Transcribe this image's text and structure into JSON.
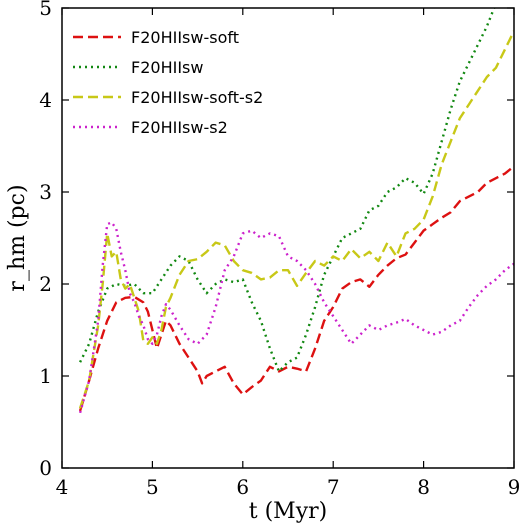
{
  "chart_data": {
    "type": "line",
    "xlabel": "t (Myr)",
    "ylabel": "r_hm (pc)",
    "xlim": [
      4,
      9
    ],
    "ylim": [
      0,
      5
    ],
    "xticks": [
      4,
      5,
      6,
      7,
      8,
      9
    ],
    "yticks": [
      0,
      1,
      2,
      3,
      4,
      5
    ],
    "grid": false,
    "legend_position": "top-left",
    "series": [
      {
        "name": "F20HIIsw-soft",
        "color": "#dd1111",
        "dash": "dashed",
        "points": [
          [
            4.2,
            0.62
          ],
          [
            4.3,
            0.95
          ],
          [
            4.4,
            1.3
          ],
          [
            4.5,
            1.6
          ],
          [
            4.6,
            1.8
          ],
          [
            4.7,
            1.85
          ],
          [
            4.8,
            1.86
          ],
          [
            4.9,
            1.8
          ],
          [
            4.95,
            1.7
          ],
          [
            5.0,
            1.5
          ],
          [
            5.05,
            1.3
          ],
          [
            5.1,
            1.45
          ],
          [
            5.15,
            1.6
          ],
          [
            5.2,
            1.55
          ],
          [
            5.3,
            1.35
          ],
          [
            5.4,
            1.2
          ],
          [
            5.5,
            1.05
          ],
          [
            5.55,
            0.92
          ],
          [
            5.6,
            1.0
          ],
          [
            5.7,
            1.05
          ],
          [
            5.8,
            1.1
          ],
          [
            5.9,
            0.92
          ],
          [
            6.0,
            0.8
          ],
          [
            6.1,
            0.88
          ],
          [
            6.2,
            0.95
          ],
          [
            6.3,
            1.1
          ],
          [
            6.4,
            1.05
          ],
          [
            6.5,
            1.1
          ],
          [
            6.6,
            1.08
          ],
          [
            6.7,
            1.05
          ],
          [
            6.8,
            1.3
          ],
          [
            6.9,
            1.6
          ],
          [
            7.0,
            1.75
          ],
          [
            7.1,
            1.95
          ],
          [
            7.2,
            2.02
          ],
          [
            7.3,
            2.05
          ],
          [
            7.4,
            1.97
          ],
          [
            7.5,
            2.1
          ],
          [
            7.6,
            2.2
          ],
          [
            7.7,
            2.28
          ],
          [
            7.8,
            2.32
          ],
          [
            7.9,
            2.45
          ],
          [
            8.0,
            2.58
          ],
          [
            8.1,
            2.65
          ],
          [
            8.2,
            2.72
          ],
          [
            8.3,
            2.78
          ],
          [
            8.4,
            2.9
          ],
          [
            8.5,
            2.95
          ],
          [
            8.6,
            3.0
          ],
          [
            8.7,
            3.1
          ],
          [
            8.8,
            3.15
          ],
          [
            8.9,
            3.2
          ],
          [
            9.0,
            3.28
          ]
        ]
      },
      {
        "name": "F20HIIsw",
        "color": "#118811",
        "dash": "dotted",
        "points": [
          [
            4.2,
            1.15
          ],
          [
            4.3,
            1.35
          ],
          [
            4.4,
            1.7
          ],
          [
            4.5,
            1.95
          ],
          [
            4.6,
            2.0
          ],
          [
            4.7,
            1.98
          ],
          [
            4.8,
            2.0
          ],
          [
            4.9,
            1.9
          ],
          [
            5.0,
            1.9
          ],
          [
            5.1,
            2.05
          ],
          [
            5.2,
            2.2
          ],
          [
            5.3,
            2.3
          ],
          [
            5.4,
            2.25
          ],
          [
            5.5,
            2.05
          ],
          [
            5.6,
            1.9
          ],
          [
            5.7,
            2.0
          ],
          [
            5.8,
            2.05
          ],
          [
            5.9,
            2.02
          ],
          [
            6.0,
            2.05
          ],
          [
            6.1,
            1.8
          ],
          [
            6.2,
            1.6
          ],
          [
            6.3,
            1.3
          ],
          [
            6.4,
            1.05
          ],
          [
            6.5,
            1.15
          ],
          [
            6.6,
            1.2
          ],
          [
            6.7,
            1.45
          ],
          [
            6.8,
            1.75
          ],
          [
            6.9,
            2.1
          ],
          [
            7.0,
            2.3
          ],
          [
            7.1,
            2.5
          ],
          [
            7.2,
            2.55
          ],
          [
            7.3,
            2.6
          ],
          [
            7.4,
            2.8
          ],
          [
            7.5,
            2.85
          ],
          [
            7.6,
            3.0
          ],
          [
            7.7,
            3.05
          ],
          [
            7.8,
            3.15
          ],
          [
            7.9,
            3.1
          ],
          [
            8.0,
            2.98
          ],
          [
            8.1,
            3.2
          ],
          [
            8.2,
            3.55
          ],
          [
            8.3,
            3.9
          ],
          [
            8.4,
            4.2
          ],
          [
            8.5,
            4.4
          ],
          [
            8.6,
            4.6
          ],
          [
            8.7,
            4.8
          ],
          [
            8.78,
            5.0
          ]
        ]
      },
      {
        "name": "F20HIIsw-soft-s2",
        "color": "#c8c817",
        "dash": "dashed",
        "points": [
          [
            4.2,
            0.65
          ],
          [
            4.3,
            0.95
          ],
          [
            4.4,
            1.55
          ],
          [
            4.45,
            2.0
          ],
          [
            4.5,
            2.55
          ],
          [
            4.55,
            2.3
          ],
          [
            4.6,
            2.35
          ],
          [
            4.65,
            2.05
          ],
          [
            4.7,
            1.95
          ],
          [
            4.75,
            2.0
          ],
          [
            4.8,
            1.85
          ],
          [
            4.85,
            1.7
          ],
          [
            4.9,
            1.38
          ],
          [
            4.95,
            1.35
          ],
          [
            5.0,
            1.42
          ],
          [
            5.05,
            1.35
          ],
          [
            5.1,
            1.5
          ],
          [
            5.15,
            1.75
          ],
          [
            5.2,
            1.85
          ],
          [
            5.3,
            2.1
          ],
          [
            5.4,
            2.25
          ],
          [
            5.5,
            2.27
          ],
          [
            5.6,
            2.35
          ],
          [
            5.7,
            2.45
          ],
          [
            5.8,
            2.42
          ],
          [
            5.9,
            2.25
          ],
          [
            6.0,
            2.15
          ],
          [
            6.1,
            2.12
          ],
          [
            6.2,
            2.05
          ],
          [
            6.3,
            2.07
          ],
          [
            6.4,
            2.15
          ],
          [
            6.5,
            2.15
          ],
          [
            6.6,
            1.98
          ],
          [
            6.7,
            2.12
          ],
          [
            6.8,
            2.25
          ],
          [
            6.9,
            2.2
          ],
          [
            7.0,
            2.3
          ],
          [
            7.1,
            2.25
          ],
          [
            7.2,
            2.38
          ],
          [
            7.3,
            2.28
          ],
          [
            7.4,
            2.35
          ],
          [
            7.5,
            2.25
          ],
          [
            7.6,
            2.45
          ],
          [
            7.7,
            2.3
          ],
          [
            7.8,
            2.55
          ],
          [
            7.9,
            2.6
          ],
          [
            8.0,
            2.7
          ],
          [
            8.1,
            2.95
          ],
          [
            8.2,
            3.3
          ],
          [
            8.3,
            3.55
          ],
          [
            8.4,
            3.8
          ],
          [
            8.5,
            3.95
          ],
          [
            8.6,
            4.1
          ],
          [
            8.7,
            4.25
          ],
          [
            8.8,
            4.35
          ],
          [
            8.9,
            4.55
          ],
          [
            9.0,
            4.75
          ]
        ]
      },
      {
        "name": "F20HIIsw-s2",
        "color": "#cc22cc",
        "dash": "dotted",
        "points": [
          [
            4.2,
            0.6
          ],
          [
            4.3,
            0.95
          ],
          [
            4.4,
            1.6
          ],
          [
            4.45,
            2.2
          ],
          [
            4.5,
            2.65
          ],
          [
            4.55,
            2.67
          ],
          [
            4.6,
            2.6
          ],
          [
            4.65,
            2.35
          ],
          [
            4.7,
            2.15
          ],
          [
            4.75,
            1.9
          ],
          [
            4.8,
            1.8
          ],
          [
            4.85,
            1.65
          ],
          [
            4.9,
            1.55
          ],
          [
            4.95,
            1.4
          ],
          [
            5.0,
            1.35
          ],
          [
            5.05,
            1.45
          ],
          [
            5.1,
            1.65
          ],
          [
            5.15,
            1.78
          ],
          [
            5.2,
            1.72
          ],
          [
            5.3,
            1.55
          ],
          [
            5.4,
            1.4
          ],
          [
            5.5,
            1.35
          ],
          [
            5.6,
            1.45
          ],
          [
            5.7,
            1.75
          ],
          [
            5.8,
            2.15
          ],
          [
            5.9,
            2.3
          ],
          [
            6.0,
            2.55
          ],
          [
            6.1,
            2.58
          ],
          [
            6.2,
            2.5
          ],
          [
            6.3,
            2.55
          ],
          [
            6.4,
            2.52
          ],
          [
            6.5,
            2.3
          ],
          [
            6.6,
            2.25
          ],
          [
            6.7,
            2.15
          ],
          [
            6.8,
            2.0
          ],
          [
            6.9,
            1.8
          ],
          [
            7.0,
            1.65
          ],
          [
            7.1,
            1.5
          ],
          [
            7.2,
            1.35
          ],
          [
            7.3,
            1.45
          ],
          [
            7.4,
            1.55
          ],
          [
            7.5,
            1.5
          ],
          [
            7.6,
            1.55
          ],
          [
            7.7,
            1.58
          ],
          [
            7.8,
            1.62
          ],
          [
            7.9,
            1.55
          ],
          [
            8.0,
            1.5
          ],
          [
            8.1,
            1.45
          ],
          [
            8.2,
            1.48
          ],
          [
            8.3,
            1.55
          ],
          [
            8.4,
            1.6
          ],
          [
            8.5,
            1.75
          ],
          [
            8.6,
            1.88
          ],
          [
            8.7,
            1.98
          ],
          [
            8.8,
            2.05
          ],
          [
            8.9,
            2.15
          ],
          [
            9.0,
            2.22
          ]
        ]
      }
    ]
  }
}
